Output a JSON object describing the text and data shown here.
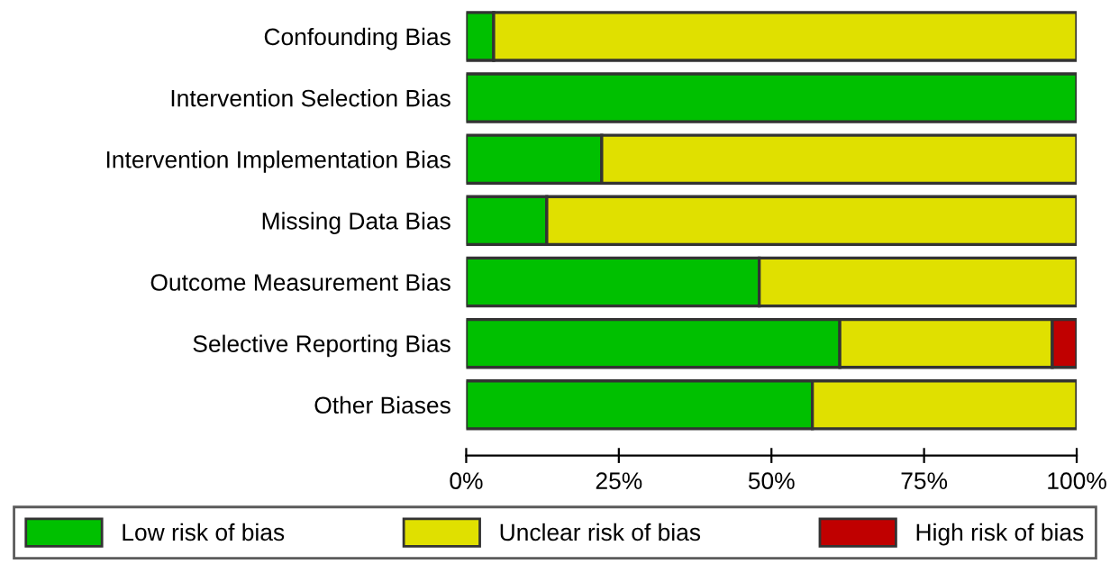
{
  "chart_data": {
    "type": "bar",
    "orientation": "horizontal",
    "stacked": true,
    "categories": [
      "Confounding Bias",
      "Intervention Selection Bias",
      "Intervention Implementation Bias",
      "Missing Data Bias",
      "Outcome Measurement Bias",
      "Selective Reporting Bias",
      "Other Biases"
    ],
    "series": [
      {
        "name": "Low risk of bias",
        "color": "#00c000",
        "values": [
          4.5,
          100,
          22.2,
          13.2,
          48,
          61.2,
          56.7
        ]
      },
      {
        "name": "Unclear risk of bias",
        "color": "#e0e000",
        "values": [
          95.5,
          0,
          77.8,
          86.8,
          52,
          34.8,
          43.3
        ]
      },
      {
        "name": "High risk of bias",
        "color": "#c00000",
        "values": [
          0,
          0,
          0,
          0,
          0,
          4,
          0
        ]
      }
    ],
    "xlim": [
      0,
      100
    ],
    "xticks": [
      {
        "value": 0,
        "label": "0%"
      },
      {
        "value": 25,
        "label": "25%"
      },
      {
        "value": 50,
        "label": "50%"
      },
      {
        "value": 75,
        "label": "75%"
      },
      {
        "value": 100,
        "label": "100%"
      }
    ],
    "grid": false,
    "legend": "bottom"
  }
}
